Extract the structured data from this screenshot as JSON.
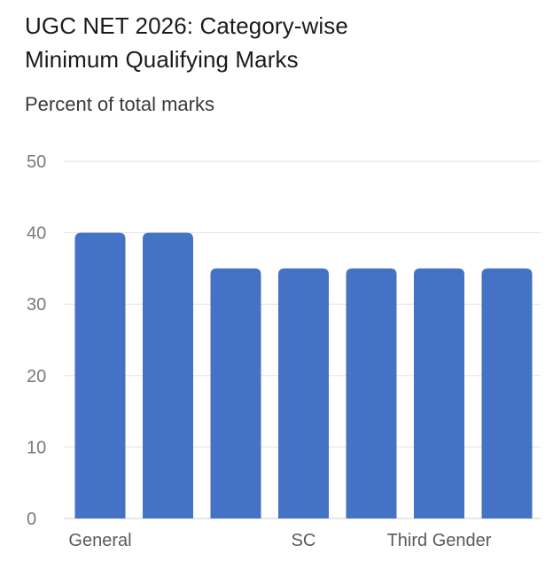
{
  "chart_data": {
    "type": "bar",
    "title": "UGC NET 2026: Category-wise Minimum Qualifying Marks",
    "subtitle": "Percent of total marks",
    "xlabel": "",
    "ylabel": "",
    "ylim": [
      0,
      50
    ],
    "yticks": [
      0,
      10,
      20,
      30,
      40,
      50
    ],
    "grid": true,
    "legend": "none",
    "bar_color": "#4472c4",
    "categories": [
      "General",
      "",
      "",
      "SC",
      "",
      "Third Gender",
      ""
    ],
    "values": [
      40,
      40,
      35,
      35,
      35,
      35,
      35
    ]
  }
}
